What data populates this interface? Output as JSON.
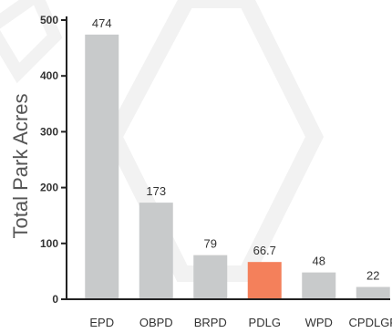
{
  "chart_data": {
    "type": "bar",
    "title": "",
    "xlabel": "",
    "ylabel": "Total Park Acres",
    "ylim": [
      0,
      500
    ],
    "yticks": [
      0,
      100,
      200,
      300,
      400,
      500
    ],
    "grid": false,
    "categories": [
      "EPD",
      "OBPD",
      "BRPD",
      "PDLG",
      "WPD",
      "CPDLGP"
    ],
    "values": [
      474,
      173,
      79,
      66.7,
      48,
      22
    ],
    "value_labels": [
      "474",
      "173",
      "79",
      "66.7",
      "48",
      "22"
    ],
    "highlight_index": 3,
    "colors": {
      "bar": "#c8cacb",
      "highlight": "#f4805b",
      "axis": "#222222",
      "watermark": "#f0f0f0"
    }
  }
}
